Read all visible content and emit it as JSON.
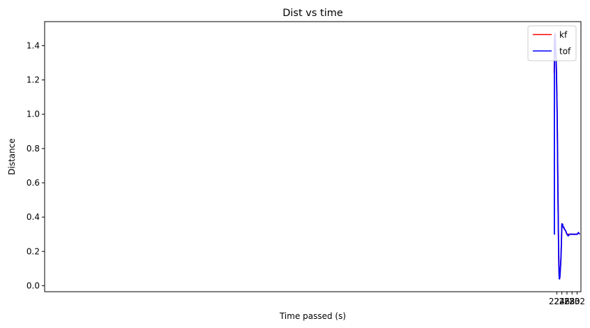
{
  "chart_data": {
    "type": "line",
    "title": "Dist vs time",
    "xlabel": "Time passed (s)",
    "ylabel": "Distance",
    "xlim": [
      22.5,
      233.5
    ],
    "ylim": [
      -0.035,
      1.54
    ],
    "xticks": [
      224,
      226,
      228,
      230,
      232
    ],
    "yticks": [
      0.0,
      0.2,
      0.4,
      0.6,
      0.8,
      1.0,
      1.2,
      1.4
    ],
    "xtick_labels": [
      "224",
      "226",
      "228",
      "230",
      "232"
    ],
    "ytick_labels": [
      "0.0",
      "0.2",
      "0.4",
      "0.6",
      "0.8",
      "1.0",
      "1.2",
      "1.4"
    ],
    "grid": false,
    "legend": "top-right",
    "series": [
      {
        "name": "kf",
        "color": "#ff0000",
        "x": [
          223.0,
          223.08,
          223.2,
          223.3,
          223.4,
          223.5,
          223.6,
          223.7,
          223.8,
          223.9,
          224.0,
          224.1,
          224.2,
          224.3,
          224.4,
          224.5,
          224.6,
          224.7,
          224.8,
          224.9,
          225.0,
          225.1,
          225.2,
          225.3,
          225.4,
          225.5,
          225.6,
          225.7,
          225.8,
          225.9,
          226.0,
          226.2,
          226.4,
          226.6,
          226.8,
          227.0,
          227.5,
          228.0,
          228.5,
          229.0,
          229.5,
          230.0,
          230.5,
          231.0,
          231.5,
          232.0,
          232.5,
          233.0
        ],
        "y": [
          1.24,
          1.4,
          1.46,
          1.47,
          1.45,
          1.41,
          1.36,
          1.33,
          1.29,
          1.23,
          1.13,
          1.05,
          0.92,
          0.78,
          0.62,
          0.49,
          0.35,
          0.24,
          0.13,
          0.07,
          0.04,
          0.04,
          0.05,
          0.07,
          0.1,
          0.12,
          0.15,
          0.19,
          0.24,
          0.3,
          0.36,
          0.36,
          0.35,
          0.34,
          0.34,
          0.33,
          0.32,
          0.3,
          0.3,
          0.3,
          0.3,
          0.3,
          0.3,
          0.3,
          0.3,
          0.3,
          0.31,
          0.3
        ]
      },
      {
        "name": "tof",
        "color": "#0000ff",
        "x": [
          223.0,
          223.05,
          223.06,
          223.08,
          223.2,
          223.3,
          223.4,
          223.5,
          223.6,
          223.7,
          223.8,
          223.9,
          224.0,
          224.1,
          224.2,
          224.3,
          224.4,
          224.5,
          224.6,
          224.7,
          224.8,
          224.9,
          225.0,
          225.1,
          225.2,
          225.3,
          225.4,
          225.5,
          225.6,
          225.7,
          225.8,
          225.9,
          226.0,
          226.2,
          226.4,
          226.6,
          226.8,
          227.0,
          227.5,
          228.0,
          228.5,
          229.0,
          229.5,
          230.0,
          230.5,
          231.0,
          231.5,
          232.0,
          232.5,
          233.0
        ],
        "y": [
          0.3,
          0.3,
          1.4,
          1.42,
          1.46,
          1.47,
          1.44,
          1.41,
          1.36,
          1.33,
          1.29,
          1.22,
          1.13,
          1.04,
          0.92,
          0.78,
          0.63,
          0.48,
          0.36,
          0.23,
          0.13,
          0.07,
          0.04,
          0.04,
          0.05,
          0.07,
          0.1,
          0.12,
          0.15,
          0.19,
          0.24,
          0.3,
          0.36,
          0.36,
          0.35,
          0.34,
          0.34,
          0.33,
          0.32,
          0.3,
          0.29,
          0.3,
          0.3,
          0.3,
          0.3,
          0.3,
          0.3,
          0.3,
          0.31,
          0.3
        ]
      }
    ]
  }
}
